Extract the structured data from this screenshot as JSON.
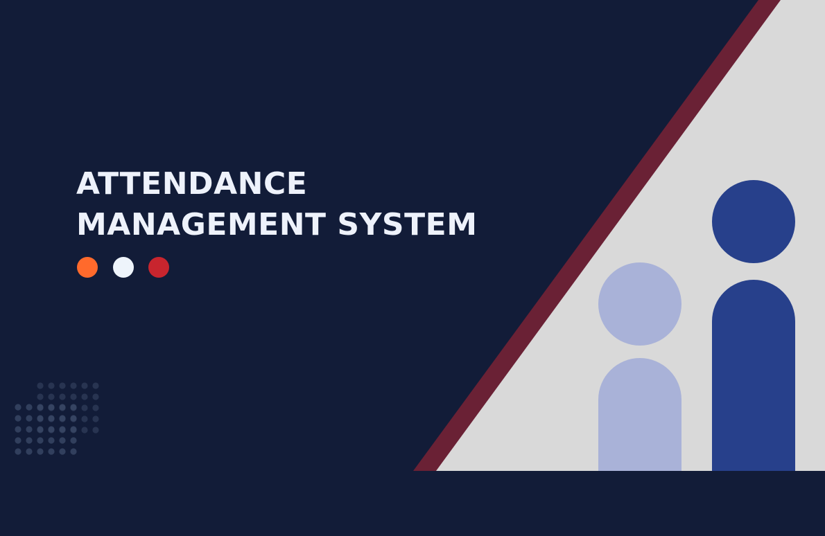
{
  "title": {
    "line1": "ATTENDANCE",
    "line2": "MANAGEMENT SYSTEM"
  },
  "colors": {
    "background": "#121c38",
    "title_text": "#eef2fb",
    "triangle_fill": "#d9d9d9",
    "triangle_border": "#6a2135",
    "person_light": "#a9b2d8",
    "person_dark": "#27408b",
    "dot_pattern": "#3a4866"
  },
  "dots": [
    {
      "name": "orange-dot",
      "color": "#ff6a2c"
    },
    {
      "name": "white-dot",
      "color": "#eef4fb"
    },
    {
      "name": "red-dot",
      "color": "#c8252e"
    }
  ],
  "icons": [
    "people-icon",
    "dot-grid-pattern"
  ]
}
